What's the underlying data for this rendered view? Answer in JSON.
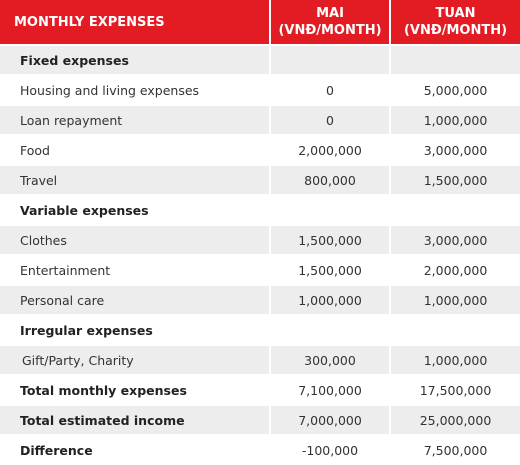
{
  "header": {
    "col1": "MONTHLY EXPENSES",
    "col2_line1": "MAI",
    "col2_line2": "(VNĐ/MONTH)",
    "col3_line1": "TUAN",
    "col3_line2": "(VNĐ/MONTH)"
  },
  "rows": [
    {
      "label": "Fixed expenses",
      "mai": "",
      "tuan": ""
    },
    {
      "label": "Housing and living expenses",
      "mai": "0",
      "tuan": "5,000,000"
    },
    {
      "label": "Loan repayment",
      "mai": "0",
      "tuan": "1,000,000"
    },
    {
      "label": "Food",
      "mai": "2,000,000",
      "tuan": "3,000,000"
    },
    {
      "label": "Travel",
      "mai": "800,000",
      "tuan": "1,500,000"
    },
    {
      "label": "Variable expenses",
      "mai": "",
      "tuan": ""
    },
    {
      "label": "Clothes",
      "mai": "1,500,000",
      "tuan": "3,000,000"
    },
    {
      "label": "Entertainment",
      "mai": "1,500,000",
      "tuan": "2,000,000"
    },
    {
      "label": "Personal care",
      "mai": "1,000,000",
      "tuan": "1,000,000"
    },
    {
      "label": "Irregular expenses",
      "mai": "",
      "tuan": ""
    },
    {
      "label": "Gift/Party, Charity",
      "mai": "300,000",
      "tuan": "1,000,000"
    },
    {
      "label": "Total monthly expenses",
      "mai": "7,100,000",
      "tuan": "17,500,000"
    },
    {
      "label": "Total estimated income",
      "mai": "7,000,000",
      "tuan": "25,000,000"
    },
    {
      "label": "Difference",
      "mai": "-100,000",
      "tuan": "7,500,000"
    }
  ],
  "colors": {
    "header_bg": "#e31b23",
    "row_grey": "#ededed",
    "row_white": "#ffffff"
  }
}
